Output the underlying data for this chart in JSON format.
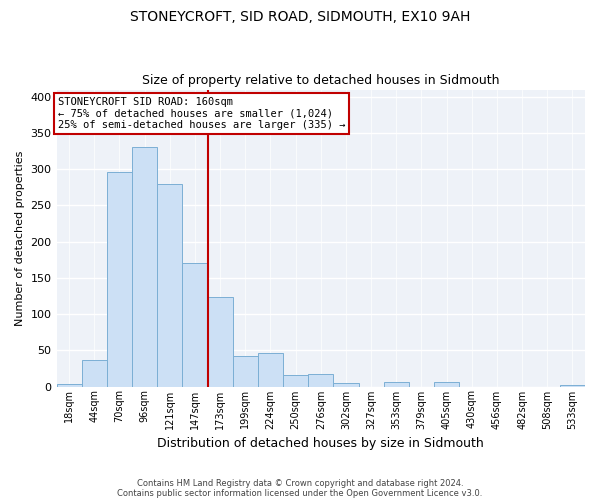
{
  "title": "STONEYCROFT, SID ROAD, SIDMOUTH, EX10 9AH",
  "subtitle": "Size of property relative to detached houses in Sidmouth",
  "xlabel": "Distribution of detached houses by size in Sidmouth",
  "ylabel": "Number of detached properties",
  "bar_labels": [
    "18sqm",
    "44sqm",
    "70sqm",
    "96sqm",
    "121sqm",
    "147sqm",
    "173sqm",
    "199sqm",
    "224sqm",
    "250sqm",
    "276sqm",
    "302sqm",
    "327sqm",
    "353sqm",
    "379sqm",
    "405sqm",
    "430sqm",
    "456sqm",
    "482sqm",
    "508sqm",
    "533sqm"
  ],
  "bar_values": [
    3,
    37,
    296,
    330,
    280,
    170,
    124,
    42,
    46,
    16,
    17,
    5,
    0,
    6,
    0,
    6,
    0,
    0,
    0,
    0,
    2
  ],
  "bar_color": "#cce0f5",
  "bar_edge_color": "#7bafd4",
  "vline_x": 5.5,
  "vline_color": "#c00000",
  "annotation_title": "STONEYCROFT SID ROAD: 160sqm",
  "annotation_line1": "← 75% of detached houses are smaller (1,024)",
  "annotation_line2": "25% of semi-detached houses are larger (335) →",
  "annotation_box_edge_color": "#c00000",
  "ylim": [
    0,
    410
  ],
  "yticks": [
    0,
    50,
    100,
    150,
    200,
    250,
    300,
    350,
    400
  ],
  "footer1": "Contains HM Land Registry data © Crown copyright and database right 2024.",
  "footer2": "Contains public sector information licensed under the Open Government Licence v3.0.",
  "figsize": [
    6.0,
    5.0
  ],
  "dpi": 100
}
